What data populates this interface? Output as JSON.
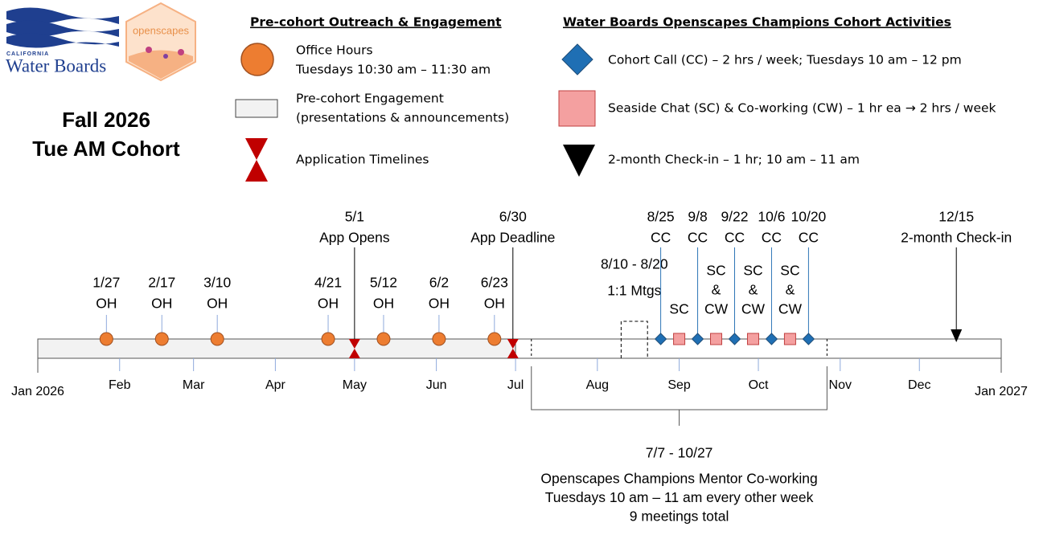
{
  "logos": {
    "agency_state": "CALIFORNIA",
    "agency_name": "Water Boards",
    "badge": "openscapes"
  },
  "title": {
    "line1": "Fall 2026",
    "line2": "Tue AM Cohort"
  },
  "legend": {
    "pre_cohort": {
      "heading": "Pre-cohort Outreach & Engagement",
      "office_hours": [
        "Office Hours",
        "Tuesdays 10:30 am – 11:30 am"
      ],
      "engagement": [
        "Pre-cohort Engagement",
        "(presentations & announcements)"
      ],
      "application": "Application Timelines"
    },
    "cohort": {
      "heading": "Water Boards Openscapes Champions Cohort Activities",
      "cohort_call": "Cohort Call (CC) – 2 hrs / week; Tuesdays 10 am – 12 pm",
      "seaside_chat": "Seaside Chat (SC) & Co-working (CW) – 1 hr ea → 2 hrs / week",
      "check_in": "2-month Check-in – 1 hr; 10 am – 11 am"
    }
  },
  "timeline": {
    "start": "Jan 2026",
    "end": "Jan 2027",
    "months": [
      "Feb",
      "Mar",
      "Apr",
      "May",
      "Jun",
      "Jul",
      "Aug",
      "Sep",
      "Oct",
      "Nov",
      "Dec"
    ],
    "office_hours": [
      {
        "date": "1/27",
        "label": "OH"
      },
      {
        "date": "2/17",
        "label": "OH"
      },
      {
        "date": "3/10",
        "label": "OH"
      },
      {
        "date": "4/21",
        "label": "OH"
      },
      {
        "date": "5/12",
        "label": "OH"
      },
      {
        "date": "6/2",
        "label": "OH"
      },
      {
        "date": "6/23",
        "label": "OH"
      }
    ],
    "application": [
      {
        "date": "5/1",
        "label": "App Opens"
      },
      {
        "date": "6/30",
        "label": "App Deadline"
      }
    ],
    "one_on_one": {
      "dates": "8/10 - 8/20",
      "label": "1:1 Mtgs"
    },
    "cohort_calls": [
      {
        "date": "8/25",
        "label": "CC"
      },
      {
        "date": "9/8",
        "label": "CC"
      },
      {
        "date": "9/22",
        "label": "CC"
      },
      {
        "date": "10/6",
        "label": "CC"
      },
      {
        "date": "10/20",
        "label": "CC"
      }
    ],
    "seaside_chats": [
      [
        "SC"
      ],
      [
        "SC",
        "&",
        "CW"
      ],
      [
        "SC",
        "&",
        "CW"
      ],
      [
        "SC",
        "&",
        "CW"
      ]
    ],
    "check_in": {
      "date": "12/15",
      "label": "2-month Check-in"
    },
    "mentor": {
      "dates": "7/7 - 10/27",
      "lines": [
        "Openscapes Champions Mentor Co-working",
        "Tuesdays 10 am – 11 am every other week",
        "9 meetings total"
      ]
    }
  }
}
